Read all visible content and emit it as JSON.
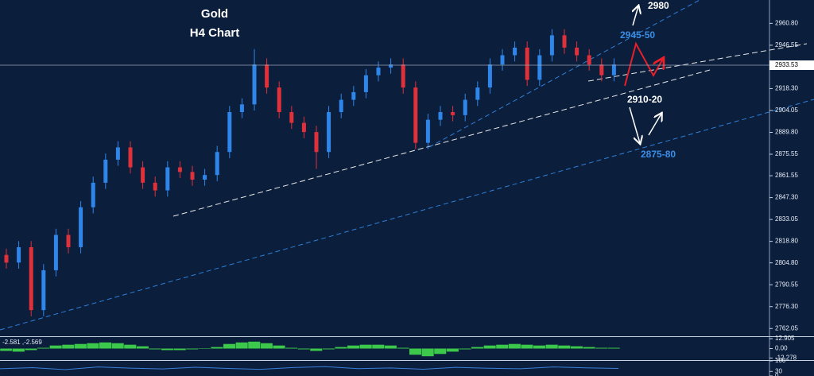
{
  "chart_data": [
    {
      "type": "candlestick",
      "annotations": [
        "Gold",
        "H4  Chart",
        "2980",
        "2945-50",
        "2910-20",
        "2875-80"
      ],
      "open": [
        2810,
        2805,
        2815,
        2774,
        2800,
        2823,
        2815,
        2841,
        2857,
        2872,
        2880,
        2867,
        2857,
        2852,
        2867,
        2864,
        2859,
        2862,
        2877,
        2903,
        2908,
        2934,
        2919,
        2903,
        2896,
        2890,
        2877,
        2903,
        2911,
        2916,
        2927,
        2932,
        2934,
        2919,
        2883,
        2898,
        2903,
        2901,
        2911,
        2919,
        2934,
        2940,
        2945,
        2924,
        2940,
        2953,
        2945,
        2940,
        2934,
        2927
      ],
      "high": [
        2814,
        2819,
        2819,
        2804,
        2827,
        2827,
        2845,
        2861,
        2876,
        2884,
        2884,
        2871,
        2861,
        2871,
        2871,
        2868,
        2866,
        2881,
        2907,
        2912,
        2944,
        2938,
        2923,
        2907,
        2900,
        2894,
        2907,
        2915,
        2920,
        2931,
        2936,
        2938,
        2938,
        2923,
        2902,
        2907,
        2907,
        2915,
        2923,
        2938,
        2944,
        2949,
        2949,
        2944,
        2957,
        2957,
        2949,
        2944,
        2938,
        2938
      ],
      "low": [
        2801,
        2801,
        2770,
        2770,
        2796,
        2811,
        2811,
        2837,
        2853,
        2868,
        2863,
        2853,
        2848,
        2848,
        2860,
        2855,
        2855,
        2858,
        2873,
        2899,
        2904,
        2915,
        2899,
        2892,
        2886,
        2866,
        2873,
        2899,
        2907,
        2912,
        2923,
        2928,
        2915,
        2879,
        2879,
        2894,
        2897,
        2897,
        2907,
        2915,
        2930,
        2936,
        2920,
        2920,
        2936,
        2941,
        2936,
        2930,
        2923,
        2923
      ],
      "close": [
        2805,
        2815,
        2774,
        2800,
        2823,
        2815,
        2841,
        2857,
        2872,
        2880,
        2867,
        2857,
        2852,
        2867,
        2864,
        2859,
        2862,
        2877,
        2903,
        2908,
        2934,
        2919,
        2903,
        2896,
        2890,
        2877,
        2903,
        2911,
        2916,
        2927,
        2932,
        2934,
        2919,
        2883,
        2898,
        2903,
        2901,
        2911,
        2919,
        2934,
        2940,
        2945,
        2924,
        2940,
        2953,
        2945,
        2940,
        2934,
        2927,
        2934
      ],
      "up_color": "#2f86ea",
      "down_color": "#e0303a",
      "last_price": 2933.53,
      "ylim": [
        2757,
        2976
      ],
      "yticks": [
        {
          "value": 2960.8,
          "label": "2960.80"
        },
        {
          "value": 2946.55,
          "label": "2946.55"
        },
        {
          "value": 2918.3,
          "label": "2918.30"
        },
        {
          "value": 2904.05,
          "label": "2904.05"
        },
        {
          "value": 2889.8,
          "label": "2889.80"
        },
        {
          "value": 2875.55,
          "label": "2875.55"
        },
        {
          "value": 2861.55,
          "label": "2861.55"
        },
        {
          "value": 2847.3,
          "label": "2847.30"
        },
        {
          "value": 2833.05,
          "label": "2833.05"
        },
        {
          "value": 2818.8,
          "label": "2818.80"
        },
        {
          "value": 2804.8,
          "label": "2804.80"
        },
        {
          "value": 2790.55,
          "label": "2790.55"
        },
        {
          "value": 2776.3,
          "label": "2776.30"
        },
        {
          "value": 2762.05,
          "label": "2762.05"
        }
      ]
    },
    {
      "type": "bar",
      "title": "-2.581 ,-2.569",
      "color": "#3cc84a",
      "values": [
        -3,
        -4,
        -2,
        1,
        4,
        5,
        6,
        7,
        8,
        7,
        5,
        3,
        -1,
        -2,
        -2,
        -1,
        0,
        2,
        6,
        8,
        9,
        7,
        4,
        1,
        -1,
        -3,
        -1,
        2,
        4,
        5,
        5,
        4,
        1,
        -8,
        -10,
        -7,
        -4,
        -1,
        2,
        4,
        5,
        6,
        5,
        4,
        5,
        4,
        3,
        2,
        1,
        1
      ],
      "ylim": [
        -15,
        15
      ],
      "yticks": [
        12.905,
        {
          "value": 0,
          "label": "0.00"
        },
        -12.278
      ]
    },
    {
      "type": "line",
      "color": "#3a7fd8",
      "values": [
        48,
        55,
        42,
        60,
        52,
        47,
        58,
        50,
        44,
        56,
        62,
        49,
        53,
        45,
        57,
        51,
        48,
        60,
        54,
        50
      ],
      "ylim": [
        0,
        100
      ],
      "yticks": [
        100,
        30,
        0
      ]
    }
  ]
}
